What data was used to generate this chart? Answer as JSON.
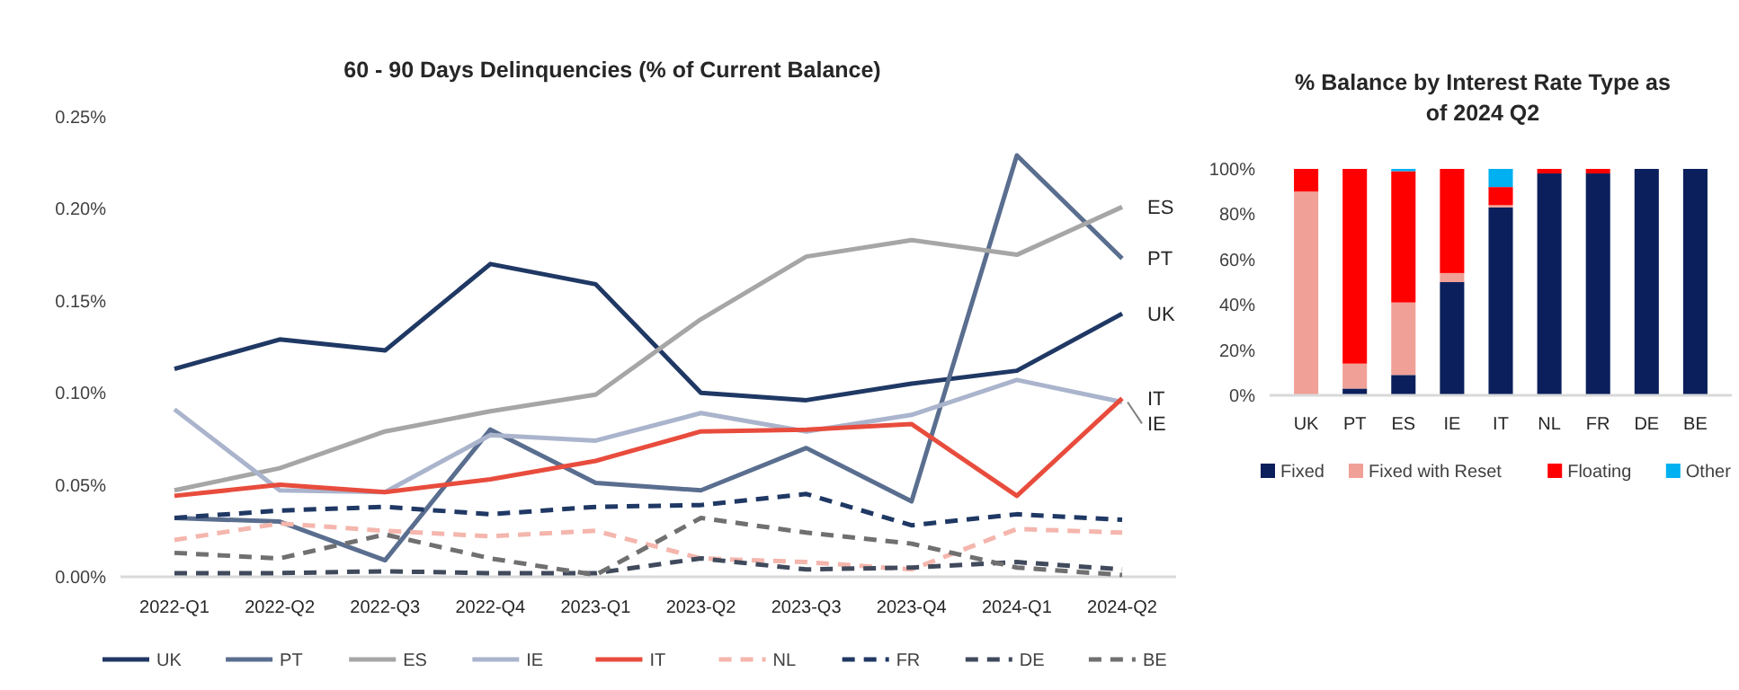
{
  "chart_data": [
    {
      "type": "line",
      "title": "60 - 90 Days Delinquencies (% of Current Balance)",
      "categories": [
        "2022-Q1",
        "2022-Q2",
        "2022-Q3",
        "2022-Q4",
        "2023-Q1",
        "2023-Q2",
        "2023-Q3",
        "2023-Q4",
        "2024-Q1",
        "2024-Q2"
      ],
      "series": [
        {
          "name": "UK",
          "color": "#1f3864",
          "line_style": "solid",
          "values": [
            0.113,
            0.129,
            0.123,
            0.17,
            0.159,
            0.1,
            0.096,
            0.105,
            0.112,
            0.143
          ]
        },
        {
          "name": "PT",
          "color": "#5a6e8f",
          "line_style": "solid",
          "values": [
            0.032,
            0.03,
            0.009,
            0.08,
            0.051,
            0.047,
            0.07,
            0.041,
            0.229,
            0.173
          ]
        },
        {
          "name": "ES",
          "color": "#a6a6a6",
          "line_style": "solid",
          "values": [
            0.047,
            0.059,
            0.079,
            0.09,
            0.099,
            0.14,
            0.174,
            0.183,
            0.175,
            0.201
          ]
        },
        {
          "name": "IE",
          "color": "#aab4cc",
          "line_style": "solid",
          "values": [
            0.091,
            0.047,
            0.046,
            0.077,
            0.074,
            0.089,
            0.079,
            0.088,
            0.107,
            0.095
          ]
        },
        {
          "name": "IT",
          "color": "#e84c3d",
          "line_style": "solid",
          "values": [
            0.044,
            0.05,
            0.046,
            0.053,
            0.063,
            0.079,
            0.08,
            0.083,
            0.044,
            0.097
          ]
        },
        {
          "name": "NL",
          "color": "#f4b6ad",
          "line_style": "dashed",
          "values": [
            0.02,
            0.029,
            0.025,
            0.022,
            0.025,
            0.01,
            0.008,
            0.004,
            0.026,
            0.024
          ]
        },
        {
          "name": "FR",
          "color": "#1f3864",
          "line_style": "dashed",
          "values": [
            0.032,
            0.036,
            0.038,
            0.034,
            0.038,
            0.039,
            0.045,
            0.028,
            0.034,
            0.031
          ]
        },
        {
          "name": "DE",
          "color": "#404a5c",
          "line_style": "dashed",
          "values": [
            0.002,
            0.002,
            0.003,
            0.002,
            0.002,
            0.01,
            0.004,
            0.005,
            0.008,
            0.004
          ]
        },
        {
          "name": "BE",
          "color": "#707070",
          "line_style": "dashed",
          "values": [
            0.013,
            0.01,
            0.023,
            0.01,
            0.001,
            0.032,
            0.024,
            0.018,
            0.005,
            0.001
          ]
        }
      ],
      "ylim": [
        0,
        0.25
      ],
      "yticks": [
        {
          "value": 0,
          "label": "0.00%"
        },
        {
          "value": 0.05,
          "label": "0.05%"
        },
        {
          "value": 0.1,
          "label": "0.10%"
        },
        {
          "value": 0.15,
          "label": "0.15%"
        },
        {
          "value": 0.2,
          "label": "0.20%"
        },
        {
          "value": 0.25,
          "label": "0.25%"
        }
      ],
      "legend": "bottom"
    },
    {
      "type": "bar",
      "stacked": true,
      "title": "% Balance by Interest Rate Type as of 2024 Q2",
      "categories": [
        "UK",
        "PT",
        "ES",
        "IE",
        "IT",
        "NL",
        "FR",
        "DE",
        "BE"
      ],
      "series": [
        {
          "name": "Fixed",
          "color": "#0b1f5c",
          "values": [
            0,
            3,
            9,
            50,
            83,
            98,
            98,
            100,
            100
          ]
        },
        {
          "name": "Fixed with Reset",
          "color": "#f0a096",
          "values": [
            90,
            11,
            32,
            4,
            1,
            0,
            0,
            0,
            0
          ]
        },
        {
          "name": "Floating",
          "color": "#ff0000",
          "values": [
            10,
            86,
            58,
            46,
            8,
            2,
            2,
            0,
            0
          ]
        },
        {
          "name": "Other",
          "color": "#00b0f0",
          "values": [
            0,
            0,
            1,
            0,
            8,
            0,
            0,
            0,
            0
          ]
        }
      ],
      "ylim": [
        0,
        100
      ],
      "yticks": [
        {
          "value": 0,
          "label": "0%"
        },
        {
          "value": 20,
          "label": "20%"
        },
        {
          "value": 40,
          "label": "40%"
        },
        {
          "value": 60,
          "label": "60%"
        },
        {
          "value": 80,
          "label": "80%"
        },
        {
          "value": 100,
          "label": "100%"
        }
      ],
      "legend": "bottom"
    }
  ]
}
